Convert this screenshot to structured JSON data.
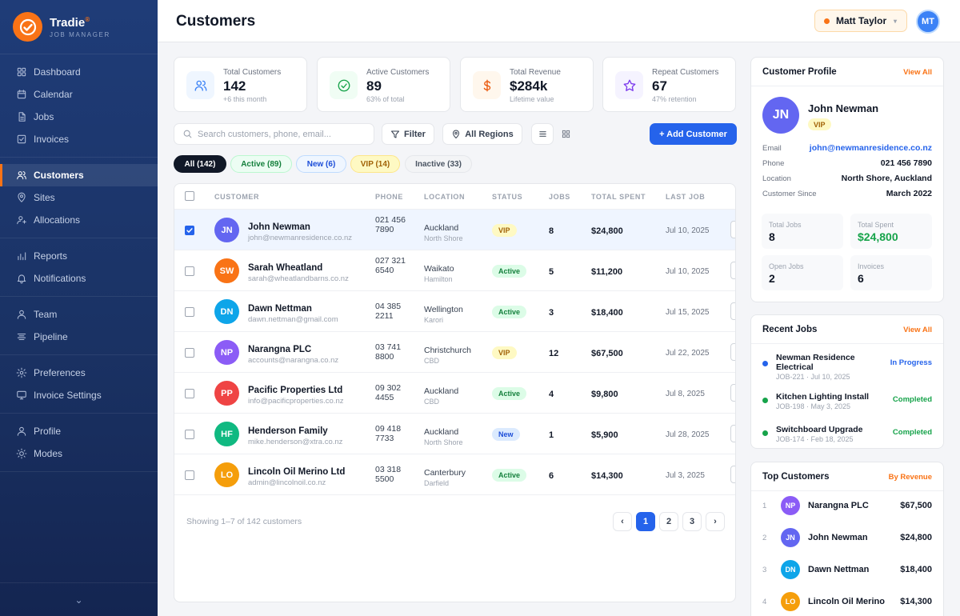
{
  "app": {
    "name": "Tradie",
    "mark": "®",
    "subtitle": "JOB MANAGER"
  },
  "sidebar": {
    "groups": [
      [
        {
          "label": "Dashboard",
          "icon": "grid-icon"
        },
        {
          "label": "Calendar",
          "icon": "calendar-icon"
        },
        {
          "label": "Jobs",
          "icon": "document-icon"
        },
        {
          "label": "Invoices",
          "icon": "checkbox-icon"
        }
      ],
      [
        {
          "label": "Customers",
          "icon": "users-icon",
          "active": true
        },
        {
          "label": "Sites",
          "icon": "map-pin-icon"
        },
        {
          "label": "Allocations",
          "icon": "user-plus-icon"
        }
      ],
      [
        {
          "label": "Reports",
          "icon": "bar-chart-icon"
        },
        {
          "label": "Notifications",
          "icon": "bell-icon"
        }
      ],
      [
        {
          "label": "Team",
          "icon": "user-icon"
        },
        {
          "label": "Pipeline",
          "icon": "pipeline-icon"
        }
      ],
      [
        {
          "label": "Preferences",
          "icon": "gear-icon"
        },
        {
          "label": "Invoice Settings",
          "icon": "monitor-icon"
        }
      ],
      [
        {
          "label": "Profile",
          "icon": "user-icon"
        },
        {
          "label": "Modes",
          "icon": "sun-icon"
        }
      ]
    ],
    "collapse_glyph": "⌄"
  },
  "header": {
    "title": "Customers",
    "user_name": "Matt Taylor",
    "user_initials": "MT",
    "caret": "▾"
  },
  "stats": [
    {
      "label": "Total Customers",
      "value": "142",
      "sub": "+6 this month",
      "color": "#3b82f6",
      "bg": "#eff6ff",
      "icon": "users-icon"
    },
    {
      "label": "Active Customers",
      "value": "89",
      "sub": "63% of total",
      "color": "#16a34a",
      "bg": "#f0fdf4",
      "icon": "check-circle-icon"
    },
    {
      "label": "Total Revenue",
      "value": "$284k",
      "sub": "Lifetime value",
      "color": "#ea580c",
      "bg": "#fff7ed",
      "icon": "dollar-icon"
    },
    {
      "label": "Repeat Customers",
      "value": "67",
      "sub": "47% retention",
      "color": "#7c3aed",
      "bg": "#f5f3ff",
      "icon": "star-icon"
    }
  ],
  "toolbar": {
    "search_placeholder": "Search customers, phone, email...",
    "filter_label": "Filter",
    "region_label": "All Regions",
    "add_label": "+ Add Customer"
  },
  "chips": [
    {
      "label": "All (142)",
      "bg": "#111827",
      "fg": "#ffffff",
      "border": "#111827"
    },
    {
      "label": "Active (89)",
      "bg": "#ecfdf3",
      "fg": "#15803d",
      "border": "#bbf7d0"
    },
    {
      "label": "New (6)",
      "bg": "#eff6ff",
      "fg": "#1d4ed8",
      "border": "#bfdbfe"
    },
    {
      "label": "VIP (14)",
      "bg": "#fef9c3",
      "fg": "#a16207",
      "border": "#fde68a"
    },
    {
      "label": "Inactive (33)",
      "bg": "#f3f4f6",
      "fg": "#4b5563",
      "border": "#e5e7eb"
    }
  ],
  "table": {
    "headers": [
      "CUSTOMER",
      "PHONE",
      "LOCATION",
      "STATUS",
      "JOBS",
      "TOTAL SPENT",
      "LAST JOB"
    ],
    "rows": [
      {
        "initials": "JN",
        "color": "#6366f1",
        "name": "John Newman",
        "email": "john@newmanresidence.co.nz",
        "phone": "021 456 7890",
        "city": "Auckland",
        "area": "North Shore",
        "status": "VIP",
        "jobs": "8",
        "spent": "$24,800",
        "last": "Jul 10, 2025",
        "selected": true
      },
      {
        "initials": "SW",
        "color": "#f97316",
        "name": "Sarah Wheatland",
        "email": "sarah@wheatlandbarns.co.nz",
        "phone": "027 321 6540",
        "city": "Waikato",
        "area": "Hamilton",
        "status": "Active",
        "jobs": "5",
        "spent": "$11,200",
        "last": "Jul 10, 2025"
      },
      {
        "initials": "DN",
        "color": "#0ea5e9",
        "name": "Dawn Nettman",
        "email": "dawn.nettman@gmail.com",
        "phone": "04 385 2211",
        "city": "Wellington",
        "area": "Karori",
        "status": "Active",
        "jobs": "3",
        "spent": "$18,400",
        "last": "Jul 15, 2025"
      },
      {
        "initials": "NP",
        "color": "#8b5cf6",
        "name": "Narangna PLC",
        "email": "accounts@narangna.co.nz",
        "phone": "03 741 8800",
        "city": "Christchurch",
        "area": "CBD",
        "status": "VIP",
        "jobs": "12",
        "spent": "$67,500",
        "last": "Jul 22, 2025"
      },
      {
        "initials": "PP",
        "color": "#ef4444",
        "name": "Pacific Properties Ltd",
        "email": "info@pacificproperties.co.nz",
        "phone": "09 302 4455",
        "city": "Auckland",
        "area": "CBD",
        "status": "Active",
        "jobs": "4",
        "spent": "$9,800",
        "last": "Jul 8, 2025"
      },
      {
        "initials": "HF",
        "color": "#10b981",
        "name": "Henderson Family",
        "email": "mike.henderson@xtra.co.nz",
        "phone": "09 418 7733",
        "city": "Auckland",
        "area": "North Shore",
        "status": "New",
        "jobs": "1",
        "spent": "$5,900",
        "last": "Jul 28, 2025"
      },
      {
        "initials": "LO",
        "color": "#f59e0b",
        "name": "Lincoln Oil Merino Ltd",
        "email": "admin@lincolnoil.co.nz",
        "phone": "03 318 5500",
        "city": "Canterbury",
        "area": "Darfield",
        "status": "Active",
        "jobs": "6",
        "spent": "$14,300",
        "last": "Jul 3, 2025"
      }
    ],
    "footer": "Showing 1–7 of 142 customers",
    "pages": [
      "‹",
      "1",
      "2",
      "3",
      "›"
    ]
  },
  "status_colors": {
    "VIP": {
      "bg": "#fef9c3",
      "fg": "#a16207"
    },
    "Active": {
      "bg": "#dcfce7",
      "fg": "#15803d"
    },
    "New": {
      "bg": "#dbeafe",
      "fg": "#1d4ed8"
    }
  },
  "profile": {
    "title": "Customer Profile",
    "link": "View All",
    "initials": "JN",
    "name": "John Newman",
    "badge": "VIP",
    "fields": [
      {
        "label": "Email",
        "value": "john@newmanresidence.co.nz",
        "link": true
      },
      {
        "label": "Phone",
        "value": "021 456 7890"
      },
      {
        "label": "Location",
        "value": "North Shore, Auckland"
      },
      {
        "label": "Customer Since",
        "value": "March 2022"
      }
    ],
    "metrics": [
      {
        "label": "Total Jobs",
        "value": "8"
      },
      {
        "label": "Total Spent",
        "value": "$24,800",
        "green": true
      },
      {
        "label": "Open Jobs",
        "value": "2"
      },
      {
        "label": "Invoices",
        "value": "6"
      }
    ]
  },
  "recent_jobs": {
    "title": "Recent Jobs",
    "link": "View All",
    "items": [
      {
        "title": "Newman Residence Electrical",
        "sub": "JOB-221 · Jul 10, 2025",
        "status": "In Progress",
        "color": "#2563eb"
      },
      {
        "title": "Kitchen Lighting Install",
        "sub": "JOB-198 · May 3, 2025",
        "status": "Completed",
        "color": "#16a34a"
      },
      {
        "title": "Switchboard Upgrade",
        "sub": "JOB-174 · Feb 18, 2025",
        "status": "Completed",
        "color": "#16a34a"
      }
    ]
  },
  "top_customers": {
    "title": "Top Customers",
    "link": "By Revenue",
    "items": [
      {
        "rank": "1",
        "initials": "NP",
        "color": "#8b5cf6",
        "name": "Narangna PLC",
        "value": "$67,500"
      },
      {
        "rank": "2",
        "initials": "JN",
        "color": "#6366f1",
        "name": "John Newman",
        "value": "$24,800"
      },
      {
        "rank": "3",
        "initials": "DN",
        "color": "#0ea5e9",
        "name": "Dawn Nettman",
        "value": "$18,400"
      },
      {
        "rank": "4",
        "initials": "LO",
        "color": "#f59e0b",
        "name": "Lincoln Oil Merino",
        "value": "$14,300"
      }
    ]
  }
}
